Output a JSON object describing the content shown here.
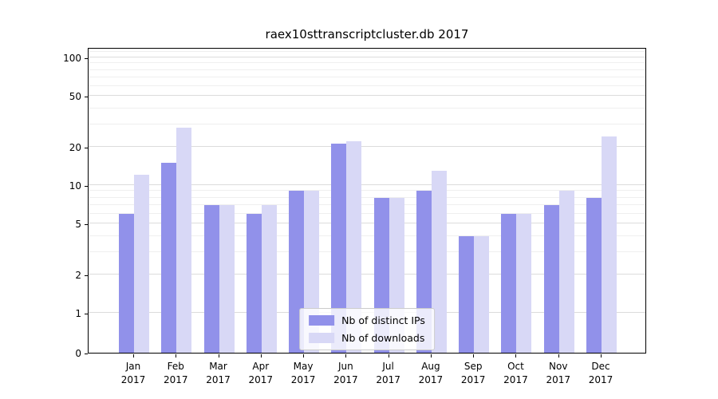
{
  "chart_data": {
    "type": "bar",
    "title": "raex10sttranscriptcluster.db 2017",
    "categories": [
      "Jan",
      "Feb",
      "Mar",
      "Apr",
      "May",
      "Jun",
      "Jul",
      "Aug",
      "Sep",
      "Oct",
      "Nov",
      "Dec"
    ],
    "category_year": "2017",
    "series": [
      {
        "name": "Nb of distinct IPs",
        "color": "#9191ea",
        "values": [
          6,
          15,
          7,
          6,
          9,
          21,
          8,
          9,
          4,
          6,
          7,
          8
        ]
      },
      {
        "name": "Nb of downloads",
        "color": "#d8d8f6",
        "values": [
          12,
          28,
          7,
          7,
          9,
          22,
          8,
          13,
          4,
          6,
          9,
          24
        ]
      }
    ],
    "xlabel": "",
    "ylabel": "",
    "yscale": "symlog",
    "ylim": [
      0,
      120
    ],
    "yticks_major": [
      0,
      1,
      2,
      5,
      10,
      20,
      50,
      100
    ],
    "yticks_minor": [
      3,
      4,
      6,
      7,
      8,
      9,
      30,
      40,
      60,
      70,
      80,
      90,
      110
    ],
    "grid": true,
    "legend_position": "lower center"
  }
}
